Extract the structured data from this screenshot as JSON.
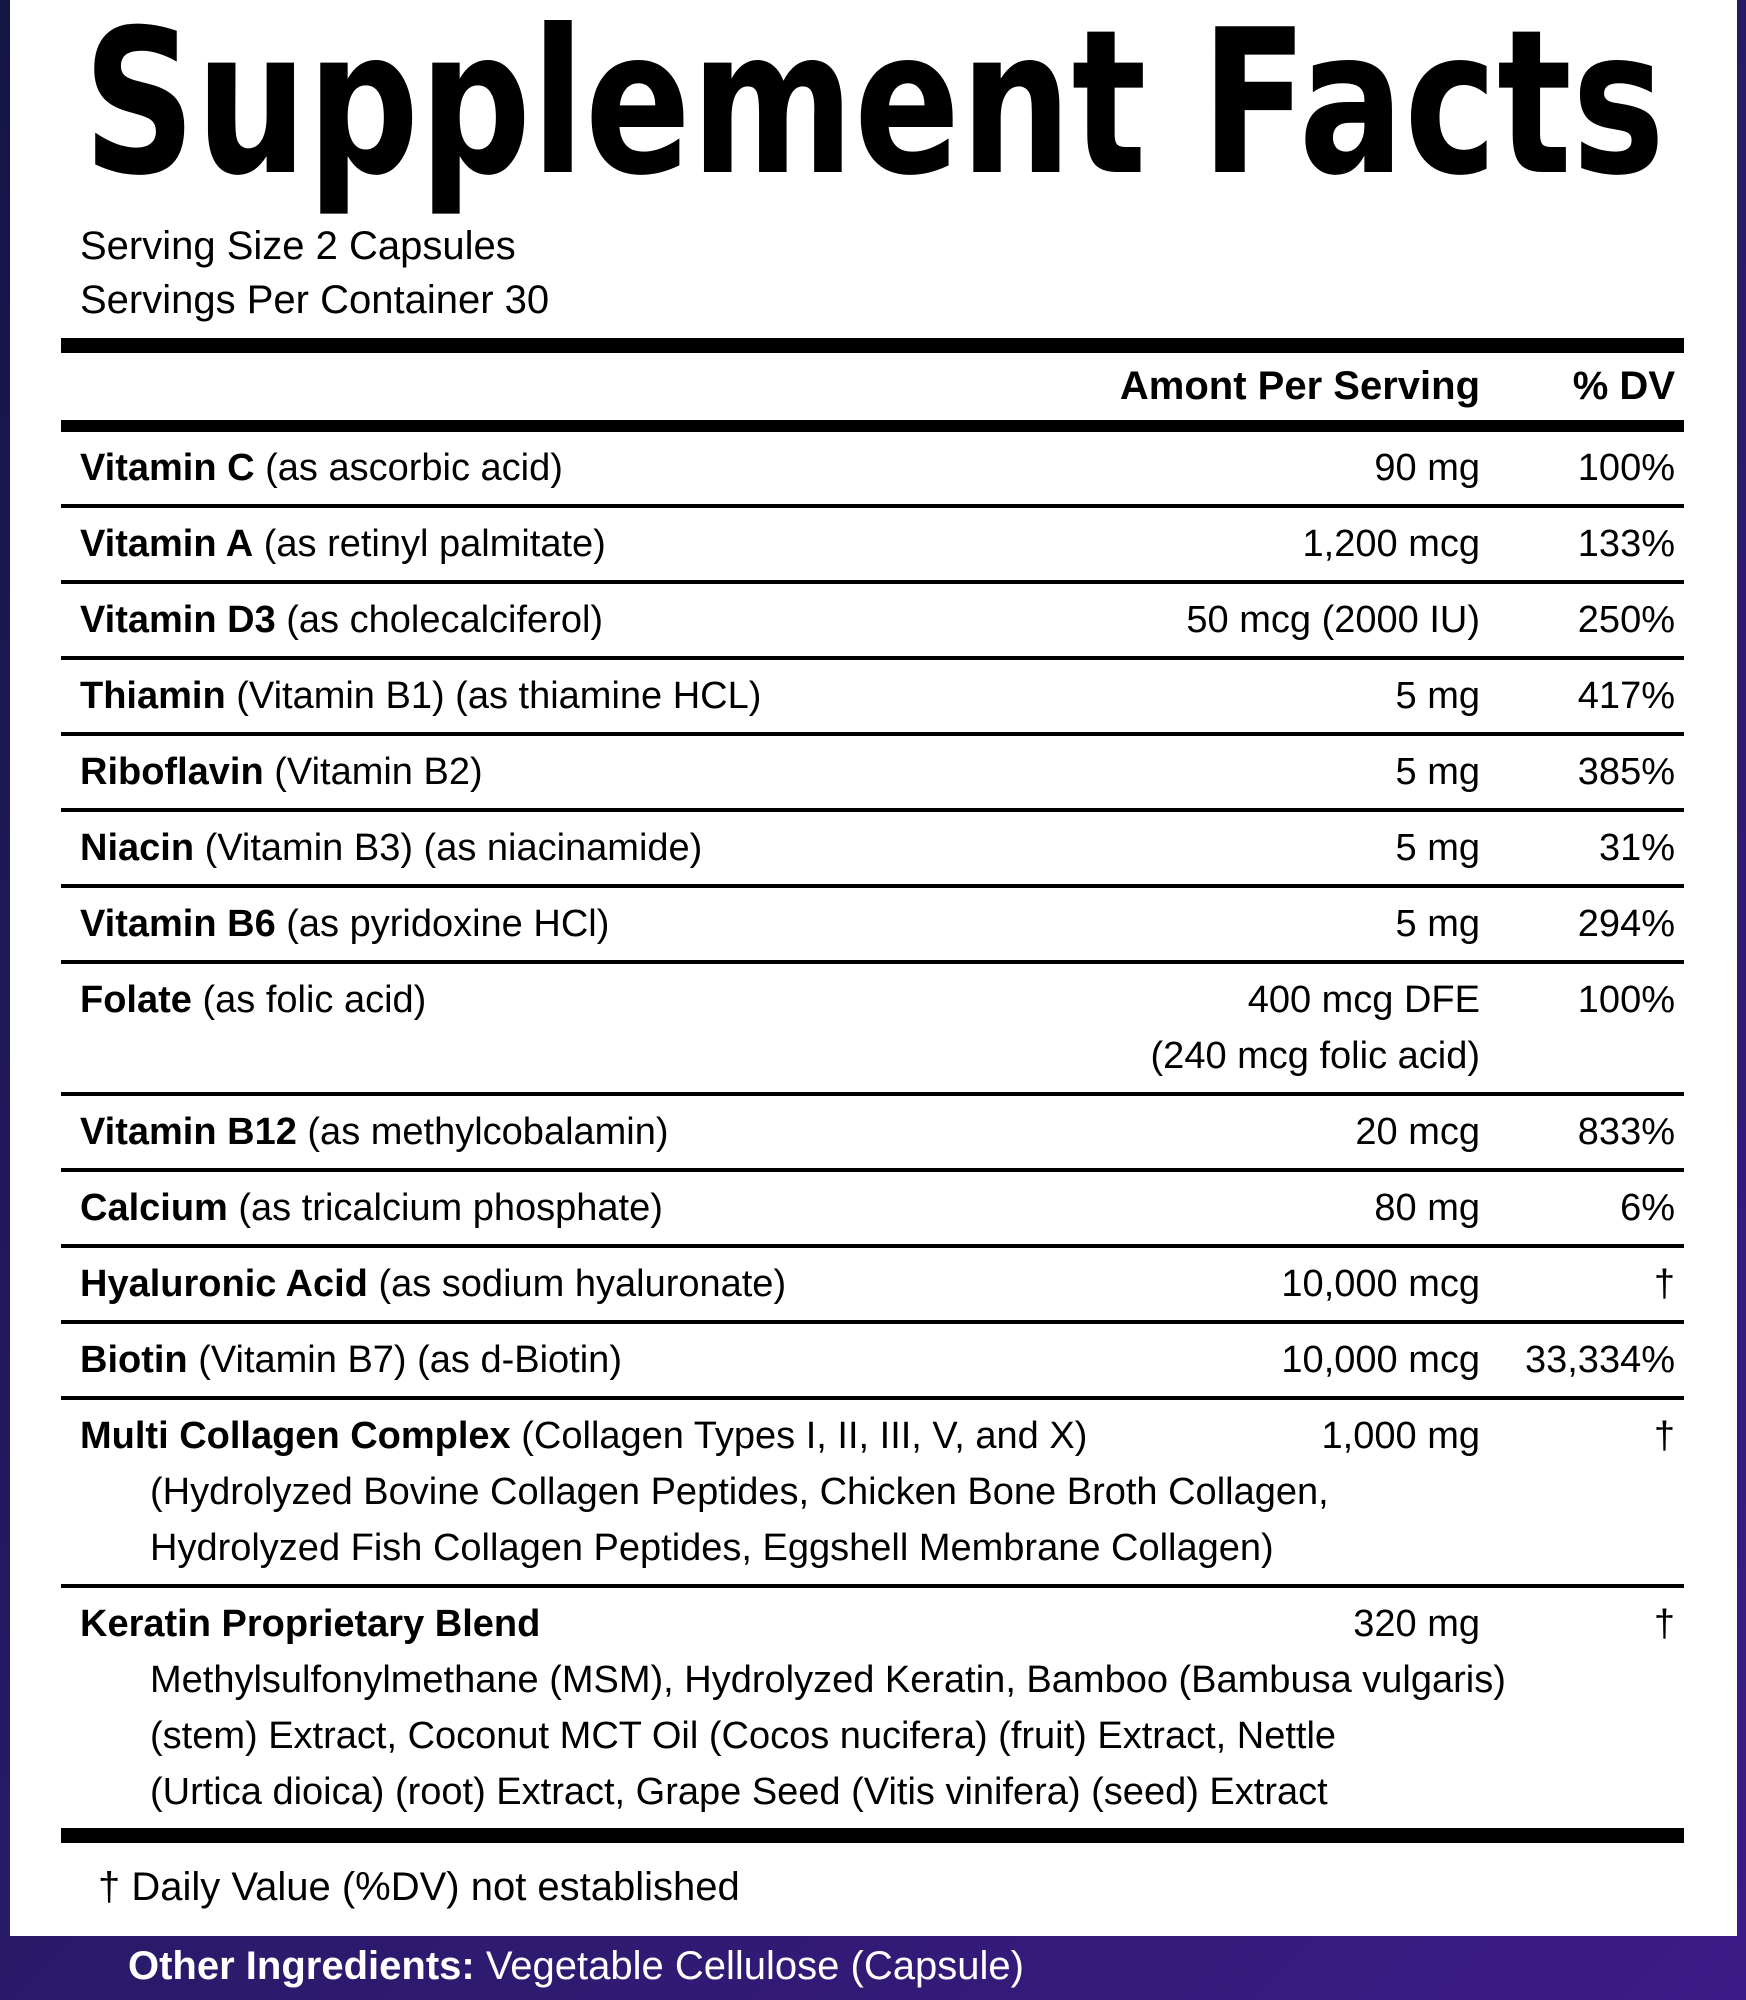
{
  "title": "Supplement Facts",
  "serving_size": "Serving Size 2 Capsules",
  "servings_per_container": "Servings Per Container 30",
  "header": {
    "amount": "Amont Per Serving",
    "dv": "% DV"
  },
  "rows": [
    {
      "name": "Vitamin C",
      "detail": "(as ascorbic acid)",
      "amount": "90 mg",
      "dv": "100%"
    },
    {
      "name": "Vitamin A",
      "detail": "(as retinyl palmitate)",
      "amount": "1,200 mcg",
      "dv": "133%"
    },
    {
      "name": "Vitamin D3",
      "detail": "(as cholecalciferol)",
      "amount": "50 mcg (2000 IU)",
      "dv": "250%"
    },
    {
      "name": "Thiamin",
      "detail": "(Vitamin B1) (as thiamine HCL)",
      "amount": "5 mg",
      "dv": "417%"
    },
    {
      "name": "Riboflavin",
      "detail": "(Vitamin B2)",
      "amount": "5 mg",
      "dv": "385%"
    },
    {
      "name": "Niacin",
      "detail": "(Vitamin B3) (as niacinamide)",
      "amount": "5 mg",
      "dv": "31%"
    },
    {
      "name": "Vitamin B6",
      "detail": "(as pyridoxine HCl)",
      "amount": "5 mg",
      "dv": "294%"
    },
    {
      "name": "Folate",
      "detail": "(as folic acid)",
      "amount": "400 mcg DFE",
      "amount_note": "(240 mcg folic acid)",
      "dv": "100%"
    },
    {
      "name": "Vitamin B12",
      "detail": "(as methylcobalamin)",
      "amount": "20 mcg",
      "dv": "833%"
    },
    {
      "name": "Calcium",
      "detail": "(as tricalcium phosphate)",
      "amount": "80 mg",
      "dv": "6%"
    },
    {
      "name": "Hyaluronic Acid",
      "detail": "(as sodium hyaluronate)",
      "amount": "10,000 mcg",
      "dv": "†"
    },
    {
      "name": "Biotin",
      "detail": "(Vitamin B7) (as d-Biotin)",
      "amount": "10,000 mcg",
      "dv": "33,334%"
    },
    {
      "name": "Multi Collagen Complex",
      "detail": "(Collagen Types I, II, III, V, and X)",
      "amount": "1,000 mg",
      "dv": "†",
      "sub": [
        "(Hydrolyzed Bovine Collagen Peptides, Chicken Bone Broth Collagen,",
        "Hydrolyzed Fish Collagen Peptides, Eggshell Membrane Collagen)"
      ]
    },
    {
      "name": "Keratin Proprietary Blend",
      "amount": "320 mg",
      "dv": "†",
      "sub": [
        "Methylsulfonylmethane (MSM), Hydrolyzed Keratin, Bamboo (Bambusa vulgaris)",
        "(stem) Extract, Coconut MCT Oil (Cocos nucifera) (fruit) Extract, Nettle",
        "(Urtica dioica) (root) Extract, Grape Seed (Vitis vinifera) (seed) Extract"
      ]
    }
  ],
  "footnote": "† Daily Value (%DV) not established",
  "other_ingredients": {
    "label": "Other Ingredients:",
    "text": "Vegetable Cellulose (Capsule)"
  }
}
